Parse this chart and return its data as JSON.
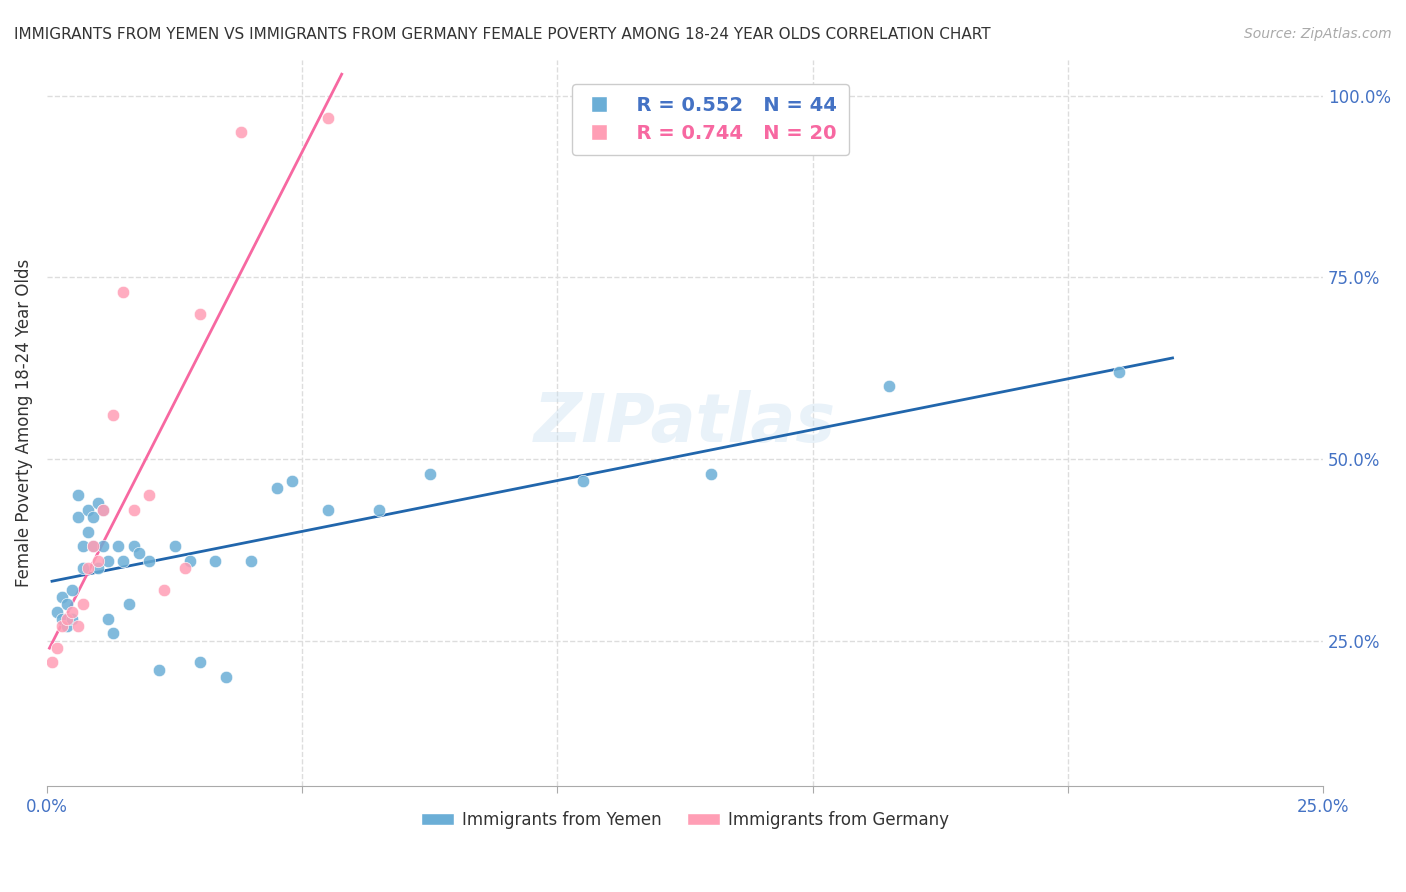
{
  "title": "IMMIGRANTS FROM YEMEN VS IMMIGRANTS FROM GERMANY FEMALE POVERTY AMONG 18-24 YEAR OLDS CORRELATION CHART",
  "source": "Source: ZipAtlas.com",
  "xlabel": "",
  "ylabel": "Female Poverty Among 18-24 Year Olds",
  "xlim": [
    0.0,
    0.25
  ],
  "ylim": [
    0.05,
    1.05
  ],
  "xticks": [
    0.0,
    0.05,
    0.1,
    0.15,
    0.2,
    0.25
  ],
  "xticklabels": [
    "0.0%",
    "",
    "",
    "",
    "",
    "25.0%"
  ],
  "yticks_right": [
    0.25,
    0.5,
    0.75,
    1.0
  ],
  "yticklabels_right": [
    "25.0%",
    "50.0%",
    "75.0%",
    "100.0%"
  ],
  "grid_color": "#dddddd",
  "background_color": "#ffffff",
  "watermark": "ZIPatlas",
  "blue_color": "#6baed6",
  "pink_color": "#ff9eb5",
  "blue_line_color": "#2166ac",
  "pink_line_color": "#f768a1",
  "legend_R_blue": "R = 0.552",
  "legend_N_blue": "N = 44",
  "legend_R_pink": "R = 0.744",
  "legend_N_pink": "N = 20",
  "yemen_x": [
    0.002,
    0.003,
    0.003,
    0.004,
    0.004,
    0.005,
    0.005,
    0.006,
    0.006,
    0.007,
    0.007,
    0.008,
    0.008,
    0.009,
    0.009,
    0.01,
    0.01,
    0.011,
    0.011,
    0.012,
    0.012,
    0.013,
    0.014,
    0.015,
    0.016,
    0.017,
    0.018,
    0.02,
    0.022,
    0.025,
    0.028,
    0.03,
    0.033,
    0.035,
    0.04,
    0.045,
    0.048,
    0.055,
    0.065,
    0.075,
    0.105,
    0.13,
    0.165,
    0.21
  ],
  "yemen_y": [
    0.29,
    0.31,
    0.28,
    0.3,
    0.27,
    0.32,
    0.28,
    0.45,
    0.42,
    0.38,
    0.35,
    0.43,
    0.4,
    0.42,
    0.38,
    0.44,
    0.35,
    0.43,
    0.38,
    0.36,
    0.28,
    0.26,
    0.38,
    0.36,
    0.3,
    0.38,
    0.37,
    0.36,
    0.21,
    0.38,
    0.36,
    0.22,
    0.36,
    0.2,
    0.36,
    0.46,
    0.47,
    0.43,
    0.43,
    0.48,
    0.47,
    0.48,
    0.6,
    0.62
  ],
  "germany_x": [
    0.001,
    0.002,
    0.003,
    0.004,
    0.005,
    0.006,
    0.007,
    0.008,
    0.009,
    0.01,
    0.011,
    0.013,
    0.015,
    0.017,
    0.02,
    0.023,
    0.027,
    0.03,
    0.038,
    0.055
  ],
  "germany_y": [
    0.22,
    0.24,
    0.27,
    0.28,
    0.29,
    0.27,
    0.3,
    0.35,
    0.38,
    0.36,
    0.43,
    0.56,
    0.73,
    0.43,
    0.45,
    0.32,
    0.35,
    0.7,
    0.95,
    0.97
  ]
}
